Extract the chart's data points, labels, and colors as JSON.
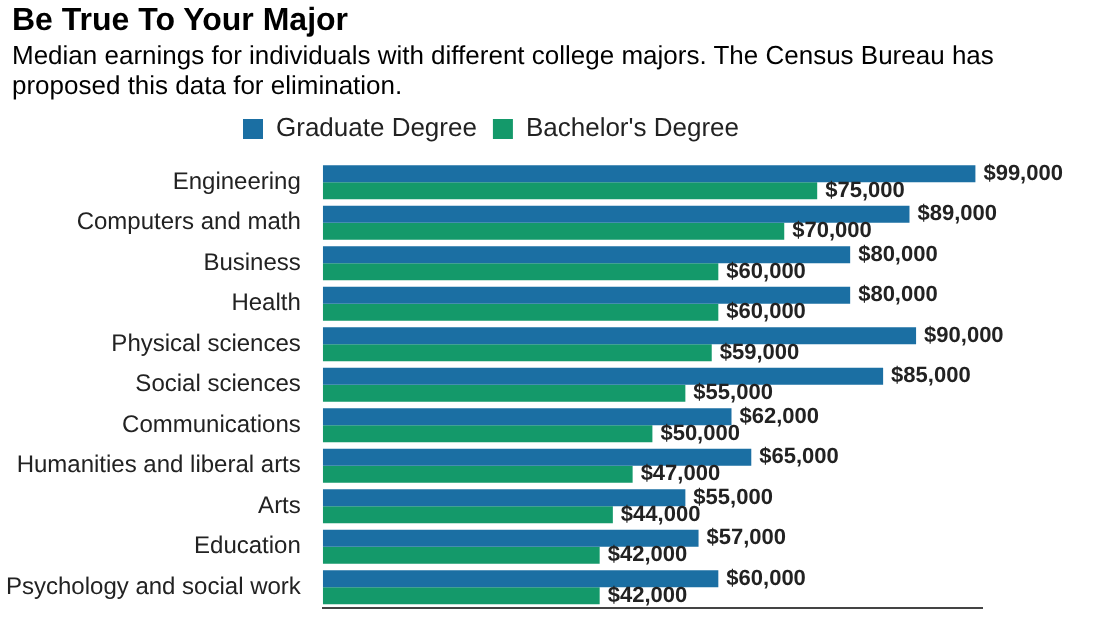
{
  "chart_data": {
    "type": "bar",
    "orientation": "horizontal",
    "title": "Be True To Your Major",
    "subtitle": "Median earnings for individuals with different college majors. The Census Bureau has proposed this data for elimination.",
    "categories": [
      "Engineering",
      "Computers and math",
      "Business",
      "Health",
      "Physical sciences",
      "Social sciences",
      "Communications",
      "Humanities and liberal arts",
      "Arts",
      "Education",
      "Psychology and social work"
    ],
    "series": [
      {
        "name": "Graduate Degree",
        "color": "#1b6fa3",
        "values": [
          99000,
          89000,
          80000,
          80000,
          90000,
          85000,
          62000,
          65000,
          55000,
          57000,
          60000
        ],
        "value_labels": [
          "$99,000",
          "$89,000",
          "$80,000",
          "$80,000",
          "$90,000",
          "$85,000",
          "$62,000",
          "$65,000",
          "$55,000",
          "$57,000",
          "$60,000"
        ]
      },
      {
        "name": "Bachelor's Degree",
        "color": "#14996a",
        "values": [
          75000,
          70000,
          60000,
          60000,
          59000,
          55000,
          50000,
          47000,
          44000,
          42000,
          42000
        ],
        "value_labels": [
          "$75,000",
          "$70,000",
          "$60,000",
          "$60,000",
          "$59,000",
          "$55,000",
          "$50,000",
          "$47,000",
          "$44,000",
          "$42,000",
          "$42,000"
        ]
      }
    ],
    "legend": "top",
    "tick_labels": "y",
    "grid": false
  }
}
